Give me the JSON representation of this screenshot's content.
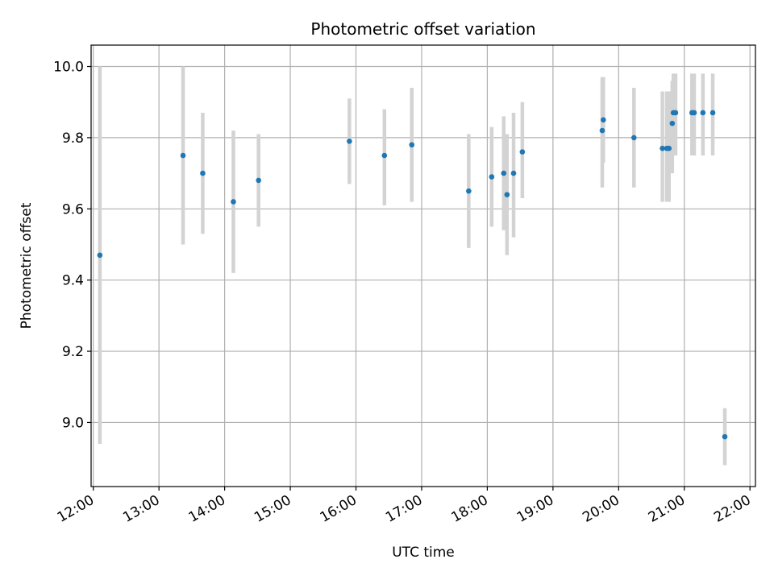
{
  "chart_data": {
    "type": "scatter",
    "title": "Photometric offset variation",
    "xlabel": "UTC time",
    "ylabel": "Photometric offset",
    "x_ticks": [
      "12:00",
      "13:00",
      "14:00",
      "15:00",
      "16:00",
      "17:00",
      "18:00",
      "19:00",
      "20:00",
      "21:00",
      "22:00"
    ],
    "y_ticks": [
      "9.0",
      "9.2",
      "9.4",
      "9.6",
      "9.8",
      "10.0"
    ],
    "xlim": [
      "11:58",
      "22:05"
    ],
    "ylim": [
      8.82,
      10.06
    ],
    "grid": true,
    "series": [
      {
        "marker_color": "#1f77b4",
        "errorbar_color": "#d3d3d3",
        "points": [
          {
            "t": "12:06",
            "y": 9.47,
            "ylo": 8.94,
            "yhi": 10.0
          },
          {
            "t": "13:22",
            "y": 9.75,
            "ylo": 9.5,
            "yhi": 10.0
          },
          {
            "t": "13:40",
            "y": 9.7,
            "ylo": 9.53,
            "yhi": 9.87
          },
          {
            "t": "14:08",
            "y": 9.62,
            "ylo": 9.42,
            "yhi": 9.82
          },
          {
            "t": "14:31",
            "y": 9.68,
            "ylo": 9.55,
            "yhi": 9.81
          },
          {
            "t": "15:54",
            "y": 9.79,
            "ylo": 9.67,
            "yhi": 9.91
          },
          {
            "t": "16:26",
            "y": 9.75,
            "ylo": 9.61,
            "yhi": 9.88
          },
          {
            "t": "16:51",
            "y": 9.78,
            "ylo": 9.62,
            "yhi": 9.94
          },
          {
            "t": "17:43",
            "y": 9.65,
            "ylo": 9.49,
            "yhi": 9.81
          },
          {
            "t": "18:04",
            "y": 9.69,
            "ylo": 9.55,
            "yhi": 9.83
          },
          {
            "t": "18:15",
            "y": 9.7,
            "ylo": 9.54,
            "yhi": 9.86
          },
          {
            "t": "18:18",
            "y": 9.64,
            "ylo": 9.47,
            "yhi": 9.81
          },
          {
            "t": "18:24",
            "y": 9.7,
            "ylo": 9.52,
            "yhi": 9.87
          },
          {
            "t": "18:32",
            "y": 9.76,
            "ylo": 9.63,
            "yhi": 9.9
          },
          {
            "t": "19:45",
            "y": 9.82,
            "ylo": 9.66,
            "yhi": 9.97
          },
          {
            "t": "19:46",
            "y": 9.85,
            "ylo": 9.73,
            "yhi": 9.97
          },
          {
            "t": "20:14",
            "y": 9.8,
            "ylo": 9.66,
            "yhi": 9.94
          },
          {
            "t": "20:40",
            "y": 9.77,
            "ylo": 9.62,
            "yhi": 9.93
          },
          {
            "t": "20:44",
            "y": 9.77,
            "ylo": 9.62,
            "yhi": 9.93
          },
          {
            "t": "20:46",
            "y": 9.77,
            "ylo": 9.62,
            "yhi": 9.93
          },
          {
            "t": "20:49",
            "y": 9.84,
            "ylo": 9.7,
            "yhi": 9.96
          },
          {
            "t": "20:50",
            "y": 9.87,
            "ylo": 9.75,
            "yhi": 9.98
          },
          {
            "t": "20:52",
            "y": 9.87,
            "ylo": 9.75,
            "yhi": 9.98
          },
          {
            "t": "21:07",
            "y": 9.87,
            "ylo": 9.75,
            "yhi": 9.98
          },
          {
            "t": "21:09",
            "y": 9.87,
            "ylo": 9.75,
            "yhi": 9.98
          },
          {
            "t": "21:17",
            "y": 9.87,
            "ylo": 9.75,
            "yhi": 9.98
          },
          {
            "t": "21:26",
            "y": 9.87,
            "ylo": 9.75,
            "yhi": 9.98
          },
          {
            "t": "21:37",
            "y": 8.96,
            "ylo": 8.88,
            "yhi": 9.04
          }
        ]
      }
    ]
  }
}
